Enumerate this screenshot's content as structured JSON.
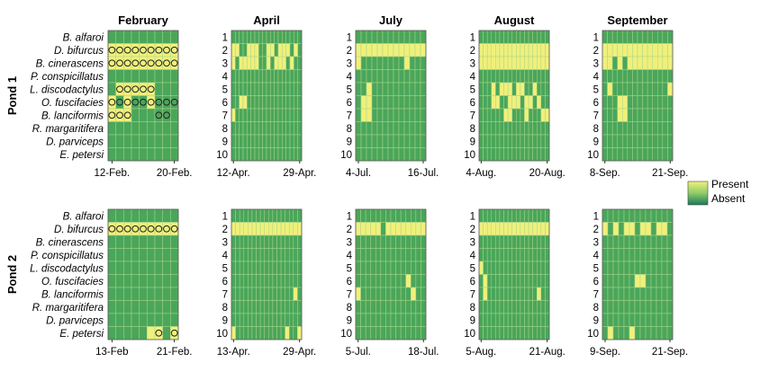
{
  "colors": {
    "present": "#f0f07a",
    "absent": "#4aa65a",
    "grid": "#a9d58a",
    "circle": "#222222",
    "frame": "#555555"
  },
  "legend": {
    "present_label": "Present",
    "absent_label": "Absent",
    "placement": "right"
  },
  "chart_data": {
    "type": "heatmap",
    "month_titles": [
      "February",
      "April",
      "July",
      "August",
      "September"
    ],
    "pond_labels": [
      "Pond 1",
      "Pond 2"
    ],
    "species": [
      "B. alfaroi",
      "D. bifurcus",
      "B. cinerascens",
      "P. conspicillatus",
      "L. discodactylus",
      "O. fuscifacies",
      "B. lanciformis",
      "R. margaritifera",
      "D. parviceps",
      "E. petersi"
    ],
    "row_numbers": [
      "1",
      "2",
      "3",
      "4",
      "5",
      "6",
      "7",
      "8",
      "9",
      "10"
    ],
    "ponds": [
      {
        "panels": [
          {
            "month": "February",
            "n_days": 9,
            "date_labels": [
              "12-Feb.",
              "20-Feb."
            ],
            "present": {
              "2": [
                1,
                2,
                3,
                4,
                5,
                6,
                7,
                8,
                9
              ],
              "3": [
                1,
                2,
                3,
                4,
                5,
                6,
                7,
                8,
                9
              ],
              "5": [
                2,
                3,
                4,
                5,
                6
              ],
              "6": [
                1,
                3,
                6
              ],
              "7": [
                1,
                2,
                3
              ]
            },
            "circles": {
              "2": [
                1,
                2,
                3,
                4,
                5,
                6,
                7,
                8,
                9
              ],
              "3": [
                1,
                2,
                3,
                4,
                5,
                6,
                7,
                8,
                9
              ],
              "5": [
                2,
                3,
                4,
                5,
                6
              ],
              "6": [
                1,
                2,
                3,
                4,
                5,
                6,
                7,
                8,
                9
              ],
              "7": [
                1,
                2,
                3,
                7,
                8
              ]
            }
          },
          {
            "month": "April",
            "n_days": 18,
            "date_labels": [
              "12-Apr.",
              "29-Apr."
            ],
            "present": {
              "2": [
                1,
                2,
                5,
                6,
                7,
                10,
                11,
                13,
                14,
                15,
                17
              ],
              "3": [
                1,
                3,
                4,
                5,
                6,
                7,
                10,
                12,
                13,
                14,
                16
              ],
              "6": [
                3,
                4
              ],
              "7": [
                1
              ]
            },
            "circles": {}
          },
          {
            "month": "July",
            "n_days": 13,
            "date_labels": [
              "4-Jul.",
              "16-Jul."
            ],
            "present": {
              "2": [
                1,
                2,
                3,
                4,
                5,
                6,
                7,
                8,
                9,
                10,
                11,
                12,
                13
              ],
              "3": [
                1,
                10
              ],
              "5": [
                3
              ],
              "6": [
                2,
                3
              ],
              "7": [
                2,
                3
              ]
            },
            "circles": {}
          },
          {
            "month": "August",
            "n_days": 17,
            "date_labels": [
              "4-Aug.",
              "20-Aug."
            ],
            "present": {
              "2": [
                1,
                2,
                3,
                4,
                5,
                6,
                7,
                8,
                9,
                10,
                11,
                12,
                13,
                14,
                15,
                16,
                17
              ],
              "3": [
                1,
                2,
                3,
                4,
                5,
                6,
                7,
                8,
                9,
                10,
                11,
                12,
                13,
                14,
                15,
                16,
                17
              ],
              "5": [
                4,
                6,
                7,
                8,
                10,
                11,
                14
              ],
              "6": [
                4,
                5,
                8,
                9,
                10,
                12,
                13,
                15
              ],
              "7": [
                7,
                8,
                12,
                16,
                17
              ]
            },
            "circles": {}
          },
          {
            "month": "September",
            "n_days": 14,
            "date_labels": [
              "8-Sep.",
              "21-Sep."
            ],
            "present": {
              "2": [
                1,
                2,
                3,
                4,
                5,
                6,
                7,
                8,
                9,
                10,
                11,
                12,
                13,
                14
              ],
              "3": [
                1,
                2,
                4,
                6,
                7,
                8,
                9,
                10,
                11,
                12,
                13,
                14
              ],
              "5": [
                2,
                14
              ],
              "6": [
                4,
                5
              ],
              "7": [
                4,
                5
              ]
            },
            "circles": {}
          }
        ]
      },
      {
        "panels": [
          {
            "month": "February",
            "n_days": 9,
            "date_labels": [
              "13-Feb",
              "21-Feb."
            ],
            "present": {
              "2": [
                1,
                2,
                3,
                4,
                5,
                6,
                7,
                8,
                9
              ],
              "10": [
                6,
                7,
                9
              ]
            },
            "circles": {
              "2": [
                1,
                2,
                3,
                4,
                5,
                6,
                7,
                8,
                9
              ],
              "10": [
                7,
                9
              ]
            }
          },
          {
            "month": "April",
            "n_days": 17,
            "date_labels": [
              "13-Apr.",
              "29-Apr."
            ],
            "present": {
              "2": [
                1,
                2,
                3,
                4,
                5,
                6,
                7,
                8,
                9,
                10,
                11,
                12,
                13,
                14,
                15,
                16,
                17
              ],
              "7": [
                16
              ],
              "10": [
                1,
                14,
                17
              ]
            },
            "circles": {}
          },
          {
            "month": "July",
            "n_days": 14,
            "date_labels": [
              "5-Jul.",
              "18-Jul."
            ],
            "present": {
              "2": [
                1,
                2,
                3,
                4,
                5,
                7,
                8,
                9,
                10,
                11,
                12,
                13,
                14
              ],
              "6": [
                11
              ],
              "7": [
                1,
                12
              ]
            },
            "circles": {}
          },
          {
            "month": "August",
            "n_days": 17,
            "date_labels": [
              "5-Aug.",
              "21-Aug."
            ],
            "present": {
              "2": [
                1,
                2,
                3,
                4,
                5,
                6,
                7,
                8,
                9,
                10,
                11,
                12,
                13,
                14,
                15,
                16,
                17
              ],
              "5": [
                1
              ],
              "6": [
                2
              ],
              "7": [
                2,
                15
              ]
            },
            "circles": {}
          },
          {
            "month": "September",
            "n_days": 13,
            "date_labels": [
              "9-Sep.",
              "21-Sep."
            ],
            "present": {
              "2": [
                1,
                3,
                5,
                6,
                8,
                9,
                11,
                12
              ],
              "6": [
                7,
                8
              ],
              "10": [
                2,
                6
              ]
            },
            "circles": {}
          }
        ]
      }
    ]
  }
}
